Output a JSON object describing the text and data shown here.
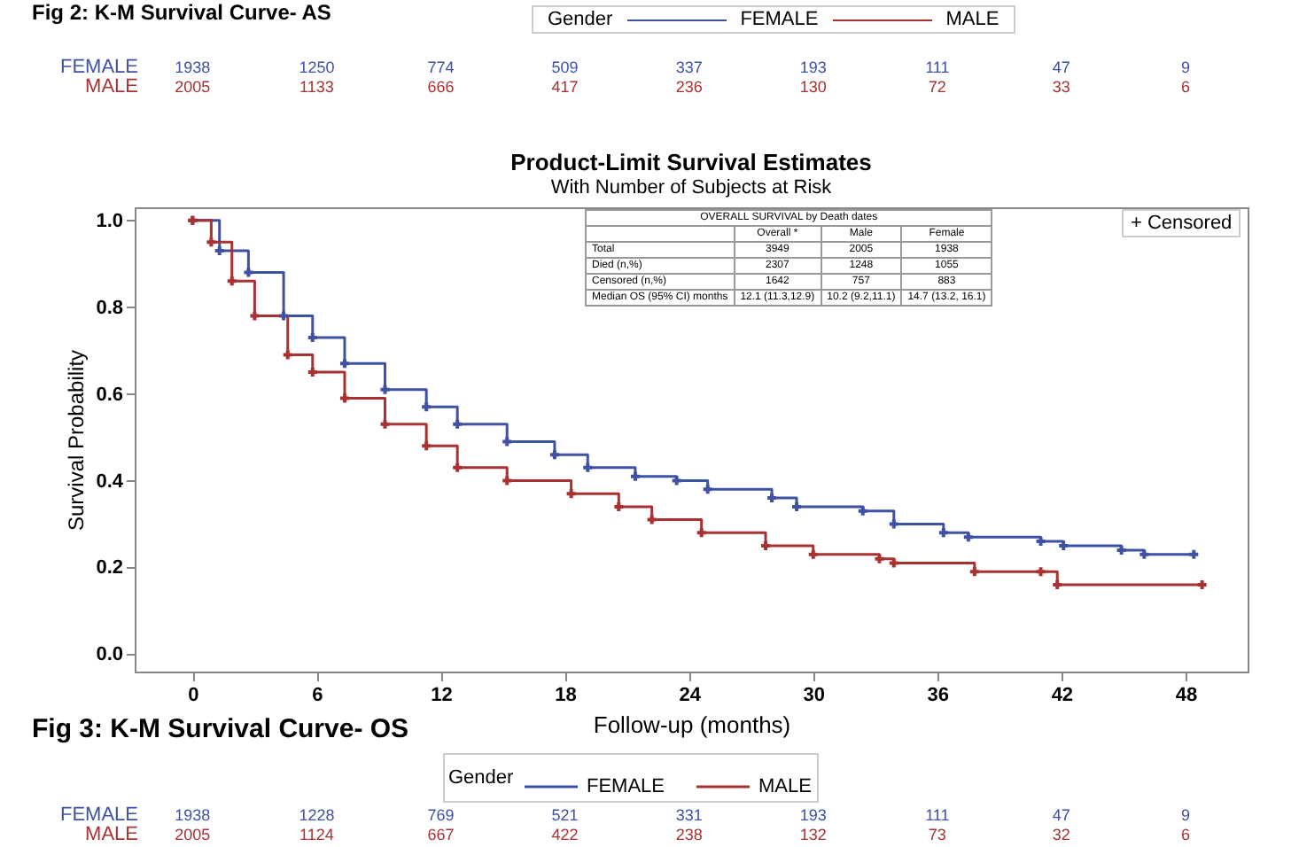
{
  "chart_data": {
    "type": "step",
    "title": "Product-Limit Survival Estimates",
    "subtitle": "With Number of Subjects at Risk",
    "xlabel": "Follow-up (months)",
    "ylabel": "Survival Probability",
    "legend_title": "Gender",
    "legend": "bottom",
    "marker": "cross",
    "xlim": [
      -2.8,
      51
    ],
    "xticks": [
      0,
      6,
      12,
      18,
      24,
      30,
      36,
      42,
      48
    ],
    "ylim": [
      -0.04,
      1.03
    ],
    "yticks": [
      {
        "value": 0,
        "label": "0.0"
      },
      {
        "value": 0.2,
        "label": "0.2"
      },
      {
        "value": 0.4,
        "label": "0.4"
      },
      {
        "value": 0.6,
        "label": "0.6"
      },
      {
        "value": 0.8,
        "label": "0.8"
      },
      {
        "value": 1,
        "label": "1.0"
      }
    ],
    "series": [
      {
        "name": "FEMALE",
        "color": "#3f51a3",
        "x": [
          0,
          1.3,
          2.7,
          4.4,
          5.8,
          7.35,
          9.3,
          11.3,
          12.8,
          15.2,
          17.5,
          19.1,
          21.4,
          23.4,
          24.9,
          28,
          29.2,
          32.4,
          33.9,
          36.3,
          37.5,
          41,
          42.1,
          44.9,
          46,
          48.4
        ],
        "values": [
          1.0,
          0.93,
          0.88,
          0.78,
          0.73,
          0.67,
          0.61,
          0.57,
          0.53,
          0.49,
          0.46,
          0.43,
          0.41,
          0.4,
          0.38,
          0.36,
          0.34,
          0.33,
          0.3,
          0.28,
          0.27,
          0.26,
          0.25,
          0.24,
          0.23,
          0.23
        ]
      },
      {
        "name": "MALE",
        "color": "#a83232",
        "x": [
          0,
          0.9,
          1.9,
          3,
          4.6,
          5.8,
          7.35,
          9.3,
          11.3,
          12.8,
          15.2,
          18.3,
          20.6,
          22.2,
          24.6,
          27.7,
          30,
          33.2,
          33.9,
          37.8,
          41,
          41.8,
          48.8
        ],
        "values": [
          1.0,
          0.95,
          0.86,
          0.78,
          0.69,
          0.65,
          0.59,
          0.53,
          0.48,
          0.43,
          0.4,
          0.37,
          0.34,
          0.31,
          0.28,
          0.25,
          0.23,
          0.22,
          0.21,
          0.19,
          0.19,
          0.16,
          0.16
        ]
      }
    ],
    "annotations": [
      "Fig 2: K-M Survival Curve- AS",
      "1938 1250 774 509 337 193 111 47 9",
      "2005 1133 666 417 236 130 72 33 6",
      "OVERALL SURVIVAL by Death dates",
      "Overall *",
      "Male",
      "Female",
      "Total",
      "3949",
      "2005",
      "1938",
      "Died (n,%)",
      "2307",
      "1248",
      "1055",
      "Censored (n,%)",
      "1642",
      "757",
      "883",
      "Median OS  (95% CI) months",
      "12.1 (11.3,12.9)",
      "10.2 (9.2,11.1)",
      "14.7 (13.2, 16.1)",
      "+ Censored",
      "Fig 3: K-M Survival Curve- OS",
      "1938 1228 769 521 331 193 111 47 9",
      "2005 1124 667 422 238 132 73 32 6"
    ]
  }
}
